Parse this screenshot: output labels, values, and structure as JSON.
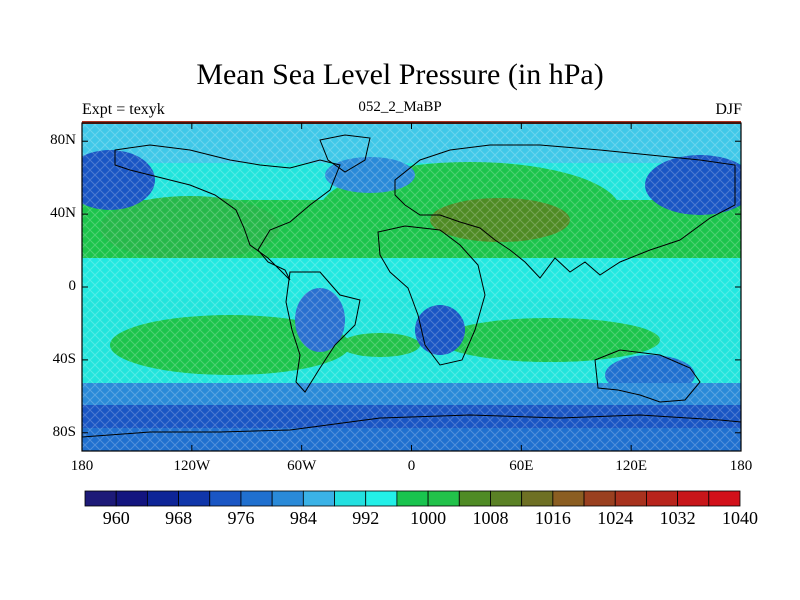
{
  "title": "Mean Sea Level Pressure (in hPa)",
  "left_label": "Expt = texyk",
  "center_label": "052_2_MaBP",
  "right_label": "DJF",
  "lat_ticks": [
    "80N",
    "40N",
    "0",
    "40S",
    "80S"
  ],
  "lat_values": [
    80,
    40,
    0,
    -40,
    -80
  ],
  "lon_ticks": [
    "180",
    "120W",
    "60W",
    "0",
    "60E",
    "120E",
    "180"
  ],
  "lon_values": [
    -180,
    -120,
    -60,
    0,
    60,
    120,
    180
  ],
  "colorbar": {
    "labels": [
      "960",
      "968",
      "976",
      "984",
      "992",
      "1000",
      "1008",
      "1016",
      "1024",
      "1032",
      "1040"
    ],
    "colors": [
      "#1d1a78",
      "#13157f",
      "#0e2597",
      "#1036aa",
      "#1a56c4",
      "#2070cf",
      "#2a8ad8",
      "#3ab2e6",
      "#23e0e0",
      "#23f0e8",
      "#19c44e",
      "#22c24a",
      "#4f8b25",
      "#5a8125",
      "#6e7024",
      "#8b5e22",
      "#9a4020",
      "#a8321e",
      "#b8241c",
      "#c8161a",
      "#d2101a"
    ]
  },
  "colors": {
    "low_deep": "#1a4fb0",
    "low": "#2a7ad8",
    "mid_low": "#40b8e8",
    "cyan": "#22e8e0",
    "green": "#1cc44c",
    "high": "#8b5e22"
  }
}
